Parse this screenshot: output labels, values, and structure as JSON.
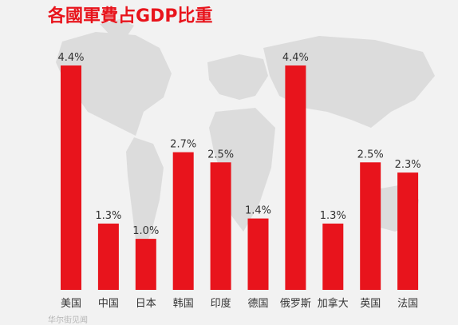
{
  "colors": {
    "background": "#f2f2f2",
    "bar": "#e8141c",
    "title": "#e8141c",
    "label": "#333333",
    "map": "#dcdcdc"
  },
  "watermark_text": "华尔街见闻",
  "chart_data": {
    "type": "bar",
    "title": "各國軍費占GDP比重",
    "xlabel": "",
    "ylabel": "",
    "ylim": [
      0,
      4.4
    ],
    "grid": false,
    "legend": "none",
    "categories": [
      "美国",
      "中国",
      "日本",
      "韩国",
      "印度",
      "德国",
      "俄罗斯",
      "加拿大",
      "英国",
      "法国"
    ],
    "values": [
      4.4,
      1.3,
      1.0,
      2.7,
      2.5,
      1.4,
      4.4,
      1.3,
      2.5,
      2.3
    ],
    "value_labels": [
      "4.4%",
      "1.3%",
      "1.0%",
      "2.7%",
      "2.5%",
      "1.4%",
      "4.4%",
      "1.3%",
      "2.5%",
      "2.3%"
    ]
  }
}
